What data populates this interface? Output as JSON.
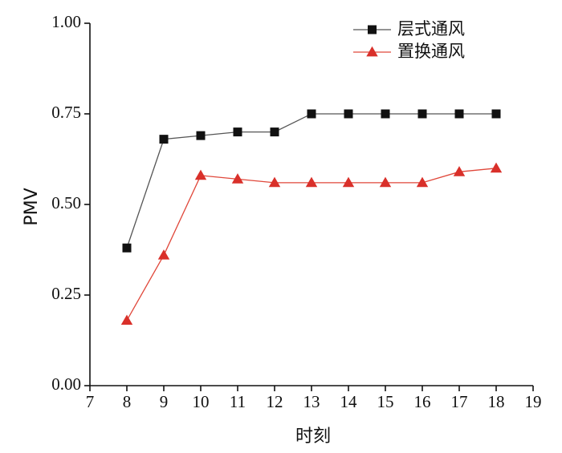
{
  "chart_data": {
    "type": "line",
    "xlabel": "时刻",
    "ylabel": "PMV",
    "xlim": [
      7,
      19
    ],
    "ylim": [
      0,
      1
    ],
    "x_ticks": [
      "7",
      "8",
      "9",
      "10",
      "11",
      "12",
      "13",
      "14",
      "15",
      "16",
      "17",
      "18",
      "19"
    ],
    "y_ticks": [
      "0.00",
      "0.25",
      "0.50",
      "0.75",
      "1.00"
    ],
    "grid": false,
    "legend_position": "top-right",
    "x": [
      8,
      9,
      10,
      11,
      12,
      13,
      14,
      15,
      16,
      17,
      18
    ],
    "series": [
      {
        "name": "层式通风",
        "marker": "square",
        "line_color": "#555555",
        "marker_color": "#111111",
        "values": [
          0.38,
          0.68,
          0.69,
          0.7,
          0.7,
          0.75,
          0.75,
          0.75,
          0.75,
          0.75,
          0.75
        ]
      },
      {
        "name": "置换通风",
        "marker": "triangle",
        "line_color": "#e0473a",
        "marker_color": "#d9302a",
        "values": [
          0.18,
          0.36,
          0.58,
          0.57,
          0.56,
          0.56,
          0.56,
          0.56,
          0.56,
          0.59,
          0.6
        ]
      }
    ]
  }
}
